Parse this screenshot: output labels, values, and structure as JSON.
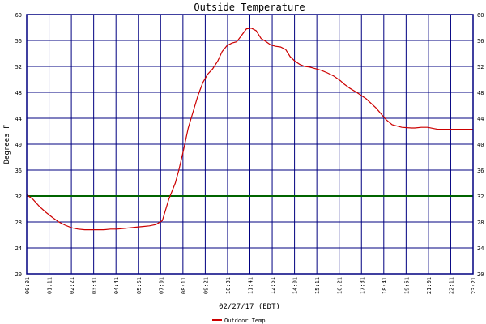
{
  "chart_data": {
    "type": "line",
    "title": "Outside Temperature",
    "xlabel": "02/27/17 (EDT)",
    "ylabel": "Degrees F",
    "ylim": [
      20,
      60
    ],
    "yticks": [
      20,
      24,
      28,
      32,
      36,
      40,
      44,
      48,
      52,
      56,
      60
    ],
    "grid": true,
    "x_tick_labels": [
      "00:01",
      "01:11",
      "02:21",
      "03:31",
      "04:41",
      "05:51",
      "07:01",
      "08:11",
      "09:21",
      "10:31",
      "11:41",
      "12:51",
      "14:01",
      "15:11",
      "16:21",
      "17:31",
      "18:41",
      "19:51",
      "21:01",
      "22:11",
      "23:21"
    ],
    "x_range_minutes": [
      1,
      1380
    ],
    "reference_line": {
      "y": 32,
      "color": "#006400"
    },
    "legend_position": "bottom-left",
    "series": [
      {
        "name": "Outdoor Temp",
        "color": "#cc0000",
        "x_minutes": [
          1,
          20,
          40,
          60,
          80,
          100,
          120,
          140,
          160,
          180,
          200,
          220,
          240,
          260,
          280,
          300,
          320,
          340,
          360,
          380,
          400,
          420,
          440,
          460,
          471,
          485,
          500,
          515,
          530,
          545,
          560,
          575,
          591,
          605,
          620,
          635,
          650,
          665,
          680,
          695,
          710,
          725,
          741,
          755,
          770,
          785,
          801,
          815,
          830,
          845,
          860,
          875,
          890,
          911,
          930,
          950,
          970,
          981,
          1000,
          1020,
          1050,
          1080,
          1111,
          1130,
          1160,
          1190,
          1200,
          1220,
          1240,
          1260,
          1271,
          1290,
          1310,
          1330,
          1350,
          1370,
          1380
        ],
        "values": [
          32.2,
          31.5,
          30.4,
          29.5,
          28.7,
          28.0,
          27.5,
          27.1,
          26.9,
          26.8,
          26.8,
          26.8,
          26.8,
          26.9,
          26.9,
          27.0,
          27.1,
          27.2,
          27.3,
          27.4,
          27.6,
          28.2,
          31.5,
          34.0,
          36.0,
          39.0,
          42.5,
          45.0,
          47.5,
          49.5,
          50.8,
          51.6,
          52.8,
          54.3,
          55.2,
          55.6,
          55.8,
          56.8,
          57.8,
          57.9,
          57.5,
          56.3,
          55.8,
          55.3,
          55.1,
          55.0,
          54.6,
          53.5,
          52.8,
          52.3,
          52.0,
          51.9,
          51.7,
          51.4,
          51.0,
          50.5,
          49.8,
          49.3,
          48.6,
          48.0,
          47.0,
          45.6,
          43.8,
          43.0,
          42.6,
          42.5,
          42.5,
          42.6,
          42.6,
          42.4,
          42.3,
          42.3,
          42.3,
          42.3,
          42.3,
          42.3,
          42.3
        ]
      }
    ]
  }
}
